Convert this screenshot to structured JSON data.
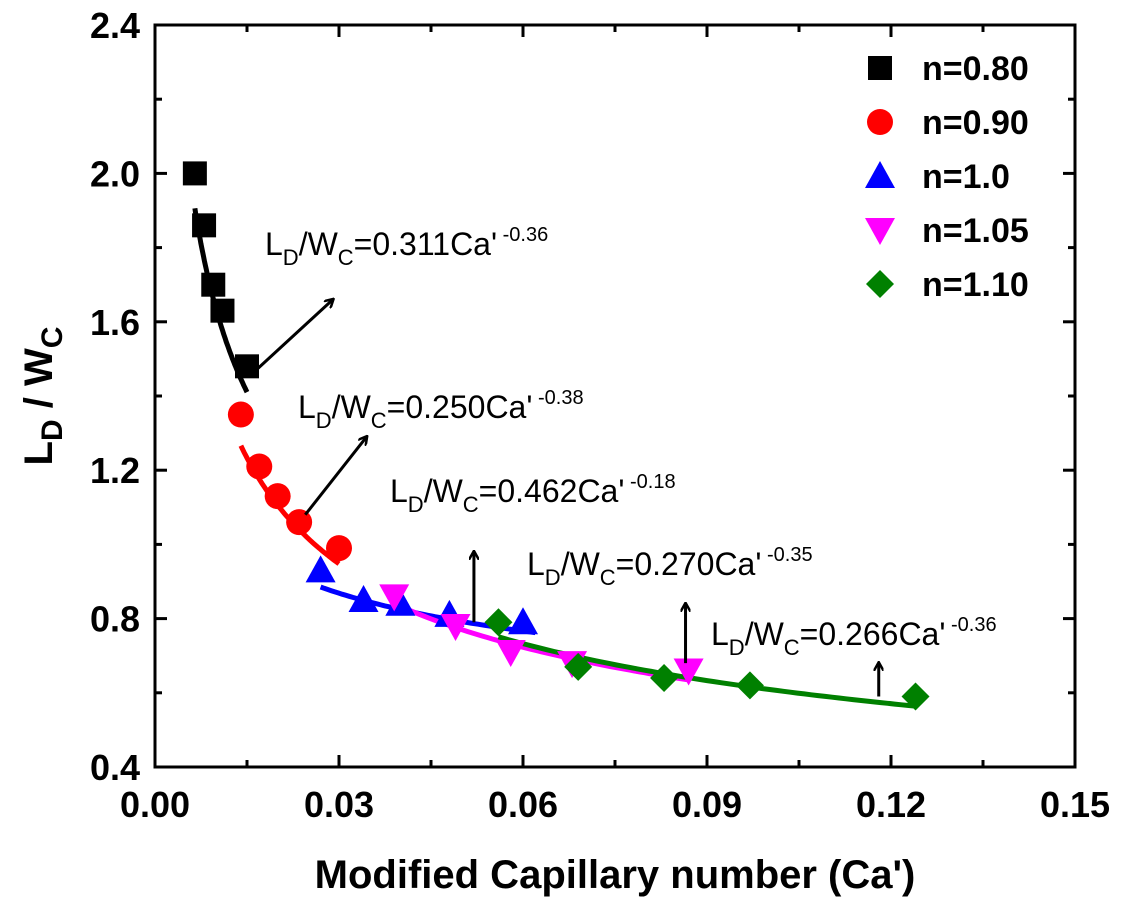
{
  "chart_data": {
    "type": "scatter",
    "xlabel": "Modified Capillary number (Ca')",
    "ylabel": {
      "main": "L",
      "sub1": "D",
      "mid": " / W",
      "sub2": "C"
    },
    "xlim": [
      0.0,
      0.15
    ],
    "ylim": [
      0.4,
      2.4
    ],
    "xticks": [
      0.0,
      0.03,
      0.06,
      0.09,
      0.12,
      0.15
    ],
    "xtick_labels": [
      "0.00",
      "0.03",
      "0.06",
      "0.09",
      "0.12",
      "0.15"
    ],
    "yticks": [
      0.4,
      0.8,
      1.2,
      1.6,
      2.0,
      2.4
    ],
    "ytick_labels": [
      "0.4",
      "0.8",
      "1.2",
      "1.6",
      "2.0",
      "2.4"
    ],
    "legend_position": "top-right",
    "series": [
      {
        "name": "n=0.80",
        "color": "#000000",
        "marker": "square",
        "x": [
          0.0065,
          0.008,
          0.0095,
          0.011,
          0.015
        ],
        "y": [
          2.0,
          1.86,
          1.7,
          1.63,
          1.48
        ],
        "fit": {
          "a": 0.311,
          "b": -0.36,
          "x_range": [
            0.0065,
            0.015
          ]
        }
      },
      {
        "name": "n=0.90",
        "color": "#ff0000",
        "marker": "circle",
        "x": [
          0.014,
          0.017,
          0.02,
          0.0235,
          0.03
        ],
        "y": [
          1.35,
          1.21,
          1.13,
          1.06,
          0.99
        ],
        "fit": {
          "a": 0.25,
          "b": -0.38,
          "x_range": [
            0.014,
            0.03
          ]
        }
      },
      {
        "name": "n=1.0",
        "color": "#0000ff",
        "marker": "triangle-up",
        "x": [
          0.027,
          0.034,
          0.04,
          0.048,
          0.06
        ],
        "y": [
          0.93,
          0.85,
          0.84,
          0.81,
          0.79
        ],
        "fit": {
          "a": 0.462,
          "b": -0.18,
          "x_range": [
            0.027,
            0.062
          ]
        }
      },
      {
        "name": "n=1.05",
        "color": "#ff00ff",
        "marker": "triangle-down",
        "x": [
          0.039,
          0.049,
          0.058,
          0.068,
          0.087
        ],
        "y": [
          0.86,
          0.78,
          0.71,
          0.68,
          0.66
        ],
        "fit": {
          "a": 0.27,
          "b": -0.35,
          "x_range": [
            0.039,
            0.087
          ]
        }
      },
      {
        "name": "n=1.10",
        "color": "#008000",
        "marker": "diamond",
        "x": [
          0.056,
          0.069,
          0.083,
          0.097,
          0.124
        ],
        "y": [
          0.79,
          0.67,
          0.64,
          0.62,
          0.59
        ],
        "fit": {
          "a": 0.266,
          "b": -0.36,
          "x_range": [
            0.056,
            0.124
          ]
        }
      }
    ],
    "annotations": [
      {
        "prefix": "L",
        "sub1": "D",
        "mid": "/W",
        "sub2": "C",
        "eq": "=0.311Ca'",
        "exp": " -0.36",
        "arrow_from": [
          0.0165,
          1.47
        ],
        "arrow_to": [
          0.029,
          1.66
        ]
      },
      {
        "prefix": "L",
        "sub1": "D",
        "mid": "/W",
        "sub2": "C",
        "eq": "=0.250Ca'",
        "exp": " -0.38",
        "arrow_from": [
          0.0245,
          1.08
        ],
        "arrow_to": [
          0.0345,
          1.29
        ]
      },
      {
        "prefix": "L",
        "sub1": "D",
        "mid": "/W",
        "sub2": "C",
        "eq": "=0.462Ca'",
        "exp": " -0.18",
        "arrow_from": [
          0.052,
          0.79
        ],
        "arrow_to": [
          0.052,
          0.98
        ]
      },
      {
        "prefix": "L",
        "sub1": "D",
        "mid": "/W",
        "sub2": "C",
        "eq": "=0.270Ca'",
        "exp": " -0.35",
        "arrow_from": [
          0.0865,
          0.68
        ],
        "arrow_to": [
          0.0865,
          0.84
        ]
      },
      {
        "prefix": "L",
        "sub1": "D",
        "mid": "/W",
        "sub2": "C",
        "eq": "=0.266Ca'",
        "exp": " -0.36",
        "arrow_from": [
          0.118,
          0.59
        ],
        "arrow_to": [
          0.118,
          0.68
        ]
      }
    ]
  }
}
